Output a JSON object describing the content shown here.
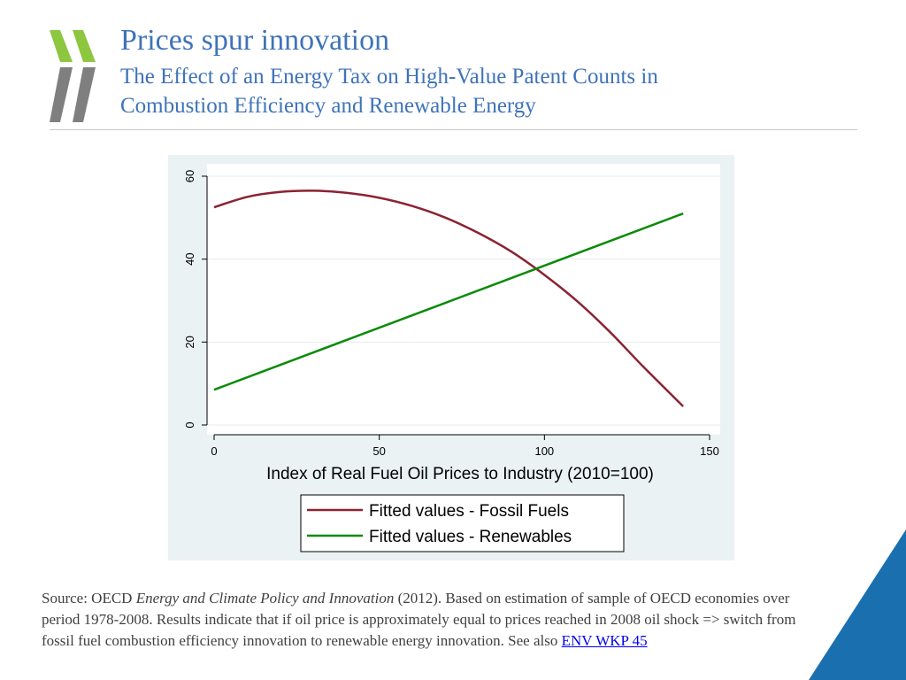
{
  "header": {
    "title": "Prices spur innovation",
    "subtitle": "The Effect of an Energy Tax on High-Value Patent Counts in Combustion Efficiency and Renewable Energy"
  },
  "chart_data": {
    "type": "line",
    "title": "",
    "xlabel": "Index of Real Fuel Oil Prices to Industry (2010=100)",
    "ylabel": "",
    "xlim": [
      0,
      150
    ],
    "ylim": [
      0,
      60
    ],
    "xticks": [
      0,
      50,
      100,
      150
    ],
    "yticks": [
      0,
      20,
      40,
      60
    ],
    "grid": "horizontal",
    "legend_position": "bottom",
    "series": [
      {
        "name": "Fitted values - Fossil Fuels",
        "color": "#8b2332",
        "x": [
          0,
          10,
          20,
          30,
          40,
          50,
          60,
          70,
          80,
          90,
          100,
          110,
          120,
          130,
          142
        ],
        "y": [
          52.5,
          55.0,
          56.2,
          56.5,
          56.0,
          54.8,
          52.8,
          50.0,
          46.3,
          41.8,
          36.2,
          29.8,
          22.3,
          14.0,
          4.5
        ]
      },
      {
        "name": "Fitted values - Renewables",
        "color": "#0a8a0a",
        "x": [
          0,
          142
        ],
        "y": [
          8.5,
          51.0
        ]
      }
    ]
  },
  "footnote": {
    "prefix": "Source:  OECD ",
    "title_italic": "Energy and Climate Policy and Innovation",
    "body": " (2012). Based on estimation of sample of OECD economies over period 1978-2008.   Results indicate that if oil price is approximately equal to prices reached in 2008 oil shock => switch from fossil fuel combustion efficiency innovation to renewable energy innovation.  See also  ",
    "link": "ENV WKP  45"
  },
  "colors": {
    "title": "#3f73b8",
    "logo_green": "#8dc63f",
    "logo_gray": "#7f7f7f",
    "corner_blue": "#1a6faf",
    "panel_bg": "#eaf2f3"
  }
}
